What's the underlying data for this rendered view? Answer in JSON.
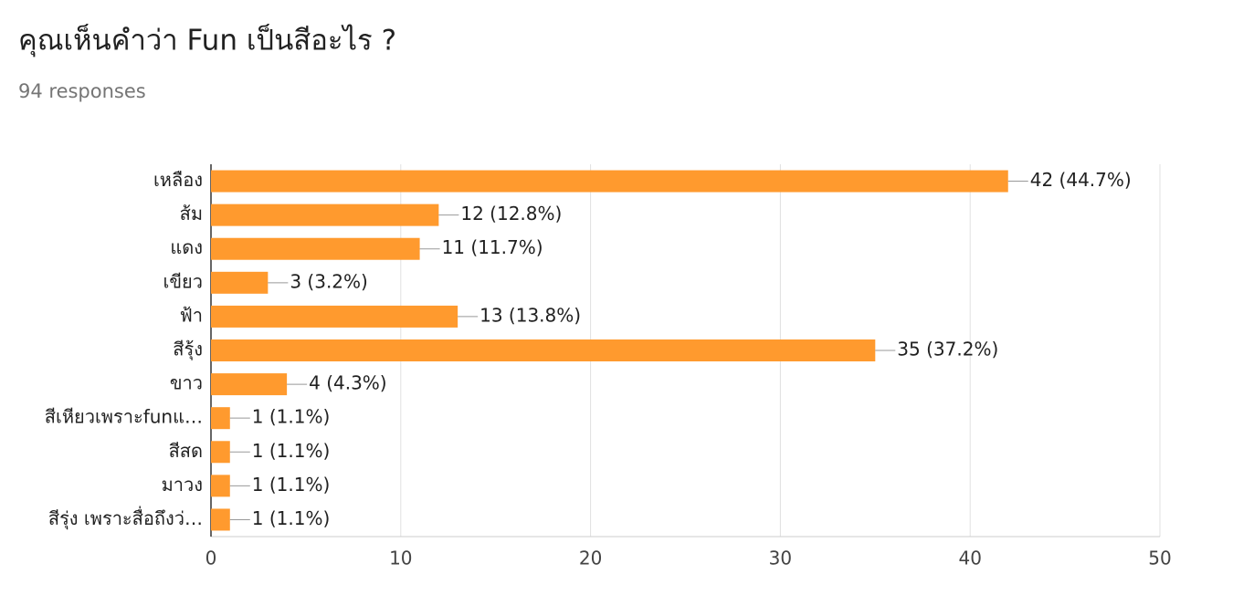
{
  "chart_data": {
    "type": "bar",
    "orientation": "horizontal",
    "title": "คุณเห็นคำว่า Fun เป็นสีอะไร ?",
    "subtitle": "94 responses",
    "categories": [
      "เหลือง",
      "ส้ม",
      "แดง",
      "เขียว",
      "ฟ้า",
      "สีรุ้ง",
      "ขาว",
      "สีเหียวเพราะfunแ…",
      "สีสด",
      "มาวง",
      "สีรุ่ง เพราะสื่อถึงว่…"
    ],
    "values": [
      42,
      12,
      11,
      3,
      13,
      35,
      4,
      1,
      1,
      1,
      1
    ],
    "value_labels": [
      "42 (44.7%)",
      "12 (12.8%)",
      "11 (11.7%)",
      "3 (3.2%)",
      "13 (13.8%)",
      "35 (37.2%)",
      "4 (4.3%)",
      "1 (1.1%)",
      "1 (1.1%)",
      "1 (1.1%)",
      "1 (1.1%)"
    ],
    "color": "#ff9a2e",
    "xlim": [
      0,
      50
    ],
    "xticks": [
      0,
      10,
      20,
      30,
      40,
      50
    ],
    "grid": true
  }
}
